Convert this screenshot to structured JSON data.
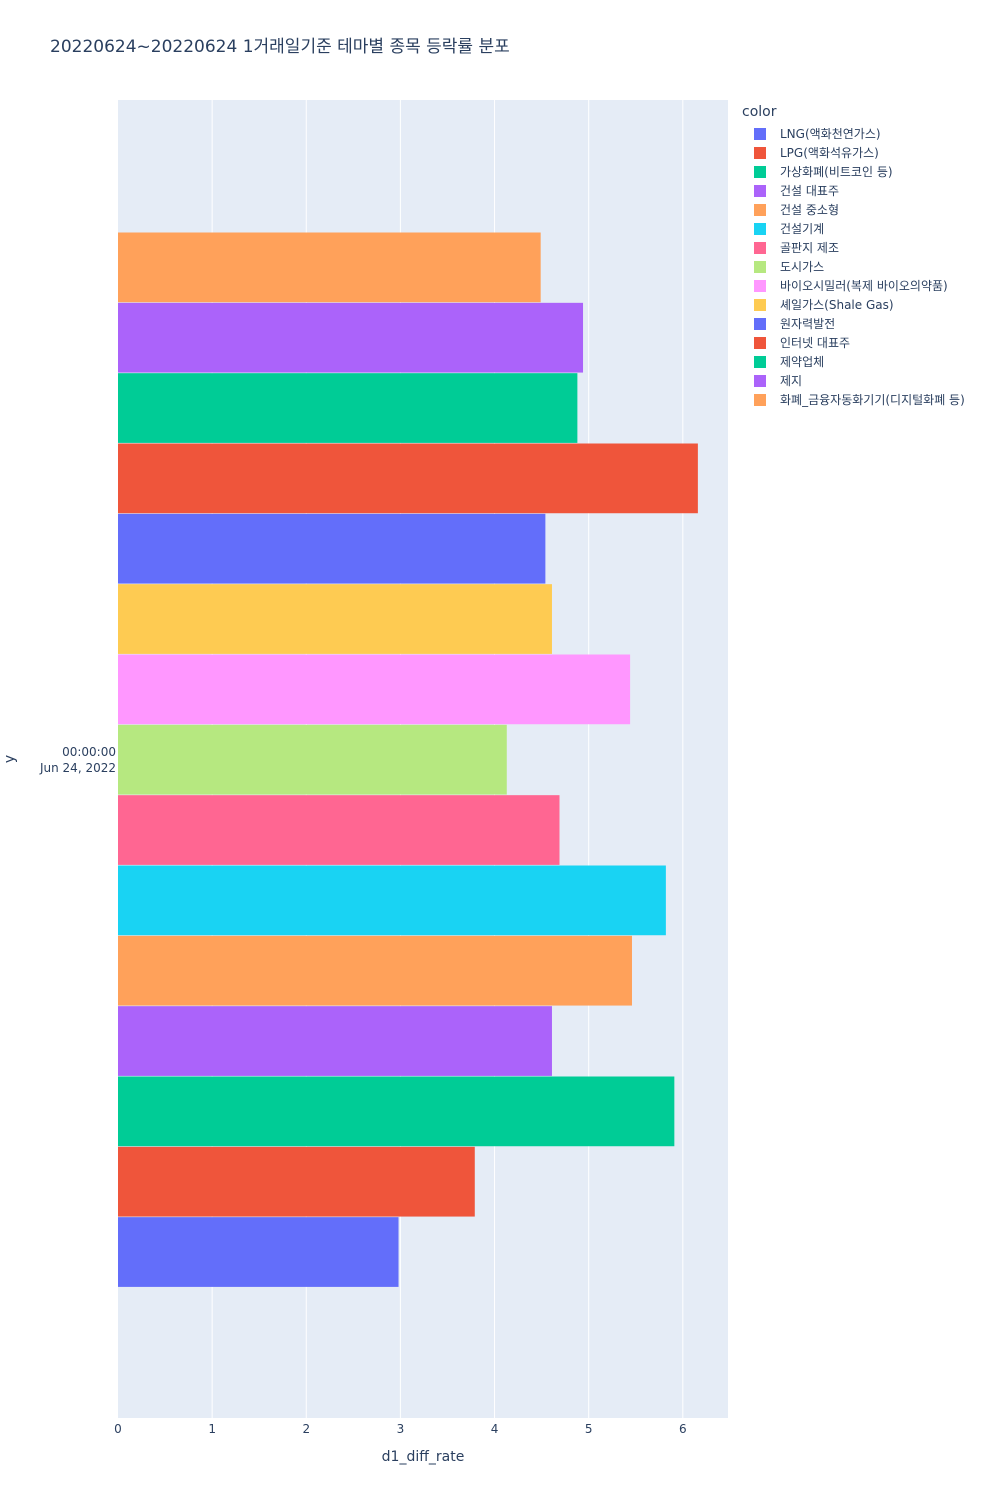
{
  "chart_data": {
    "type": "bar",
    "orientation": "horizontal",
    "barmode": "group",
    "title": "20220624~20220624 1거래일기준 테마별 종목 등락률 분포",
    "xlabel": "d1_diff_rate",
    "ylabel": "y",
    "xlim": [
      0,
      6.48
    ],
    "xticks": [
      "0",
      "1",
      "2",
      "3",
      "4",
      "5",
      "6"
    ],
    "y_category": [
      "00:00:00",
      "Jun 24, 2022"
    ],
    "grid": true,
    "legend_title": "color",
    "legend_position": "top-right",
    "series": [
      {
        "name": "LNG(액화천연가스)",
        "value": 2.98,
        "color": "#636efa"
      },
      {
        "name": "LPG(액화석유가스)",
        "value": 3.79,
        "color": "#EF553B"
      },
      {
        "name": "가상화폐(비트코인 등)",
        "value": 5.91,
        "color": "#00cc96"
      },
      {
        "name": "건설 대표주",
        "value": 4.61,
        "color": "#ab63fa"
      },
      {
        "name": "건설 중소형",
        "value": 5.46,
        "color": "#FFA15A"
      },
      {
        "name": "건설기계",
        "value": 5.82,
        "color": "#19d3f3"
      },
      {
        "name": "골판지 제조",
        "value": 4.69,
        "color": "#FF6692"
      },
      {
        "name": "도시가스",
        "value": 4.13,
        "color": "#B6E880"
      },
      {
        "name": "바이오시밀러(복제 바이오의약품)",
        "value": 5.44,
        "color": "#FF97FF"
      },
      {
        "name": "셰일가스(Shale Gas)",
        "value": 4.61,
        "color": "#FECB52"
      },
      {
        "name": "원자력발전",
        "value": 4.54,
        "color": "#636efa"
      },
      {
        "name": "인터넷 대표주",
        "value": 6.16,
        "color": "#EF553B"
      },
      {
        "name": "제약업체",
        "value": 4.88,
        "color": "#00cc96"
      },
      {
        "name": "제지",
        "value": 4.94,
        "color": "#ab63fa"
      },
      {
        "name": "화폐_금융자동화기기(디지털화폐 등)",
        "value": 4.49,
        "color": "#FFA15A"
      }
    ]
  }
}
